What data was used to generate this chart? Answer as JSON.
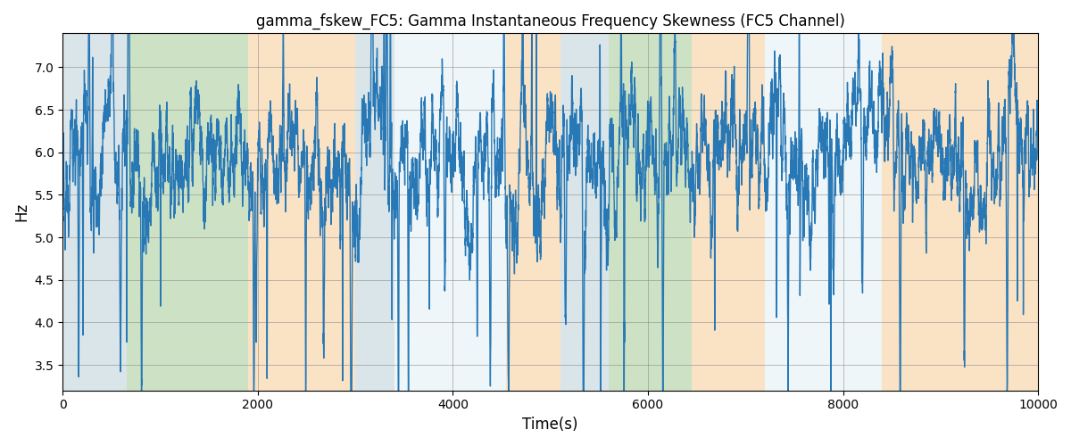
{
  "title": "gamma_fskew_FC5: Gamma Instantaneous Frequency Skewness (FC5 Channel)",
  "xlabel": "Time(s)",
  "ylabel": "Hz",
  "xlim": [
    0,
    10000
  ],
  "ylim": [
    3.2,
    7.4
  ],
  "line_color": "#2878b5",
  "line_width": 1.0,
  "bands": [
    {
      "xmin": 0,
      "xmax": 660,
      "color": "#aec6cf",
      "alpha": 0.45
    },
    {
      "xmin": 660,
      "xmax": 1900,
      "color": "#90c080",
      "alpha": 0.45
    },
    {
      "xmin": 1900,
      "xmax": 3000,
      "color": "#f5c080",
      "alpha": 0.45
    },
    {
      "xmin": 3000,
      "xmax": 3400,
      "color": "#aec6cf",
      "alpha": 0.45
    },
    {
      "xmin": 3400,
      "xmax": 4550,
      "color": "#d0e8f0",
      "alpha": 0.35
    },
    {
      "xmin": 4550,
      "xmax": 5100,
      "color": "#f5c080",
      "alpha": 0.45
    },
    {
      "xmin": 5100,
      "xmax": 5600,
      "color": "#aec6cf",
      "alpha": 0.45
    },
    {
      "xmin": 5600,
      "xmax": 6450,
      "color": "#90c080",
      "alpha": 0.45
    },
    {
      "xmin": 6450,
      "xmax": 7200,
      "color": "#f5c080",
      "alpha": 0.45
    },
    {
      "xmin": 7200,
      "xmax": 8400,
      "color": "#d0e8f0",
      "alpha": 0.35
    },
    {
      "xmin": 8400,
      "xmax": 10000,
      "color": "#f5c080",
      "alpha": 0.45
    }
  ],
  "yticks": [
    3.5,
    4.0,
    4.5,
    5.0,
    5.5,
    6.0,
    6.5,
    7.0
  ],
  "xticks": [
    0,
    2000,
    4000,
    6000,
    8000,
    10000
  ],
  "seed": 2023,
  "n_points": 10000
}
